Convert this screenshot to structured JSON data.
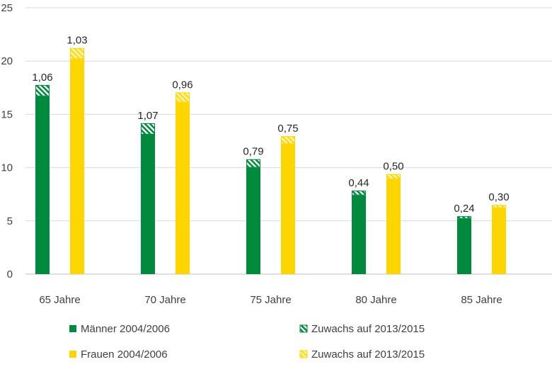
{
  "chart_data": {
    "type": "bar",
    "categories": [
      "65 Jahre",
      "70 Jahre",
      "75 Jahre",
      "80 Jahre",
      "85 Jahre"
    ],
    "ylim": [
      0,
      25
    ],
    "yticks": [
      "0",
      "5",
      "10",
      "15",
      "20",
      "25"
    ],
    "grid": true,
    "series": [
      {
        "name": "Männer 2004/2006",
        "color": "#008a3e",
        "values": [
          16.7,
          13.1,
          10.0,
          7.4,
          5.2
        ]
      },
      {
        "name": "Zuwachs auf 2013/2015",
        "stack_on": "Männer 2004/2006",
        "pattern": "hatched-green",
        "values": [
          1.06,
          1.07,
          0.79,
          0.44,
          0.24
        ],
        "labels": [
          "1,06",
          "1,07",
          "0,79",
          "0,44",
          "0,24"
        ]
      },
      {
        "name": "Frauen 2004/2006",
        "color": "#ffd500",
        "values": [
          20.2,
          16.1,
          12.2,
          8.9,
          6.2
        ]
      },
      {
        "name": "Zuwachs auf 2013/2015",
        "stack_on": "Frauen 2004/2006",
        "pattern": "hatched-yellow",
        "values": [
          1.03,
          0.96,
          0.75,
          0.5,
          0.3
        ],
        "labels": [
          "1,03",
          "0,96",
          "0,75",
          "0,50",
          "0,30"
        ]
      }
    ],
    "legend_position": "bottom"
  }
}
